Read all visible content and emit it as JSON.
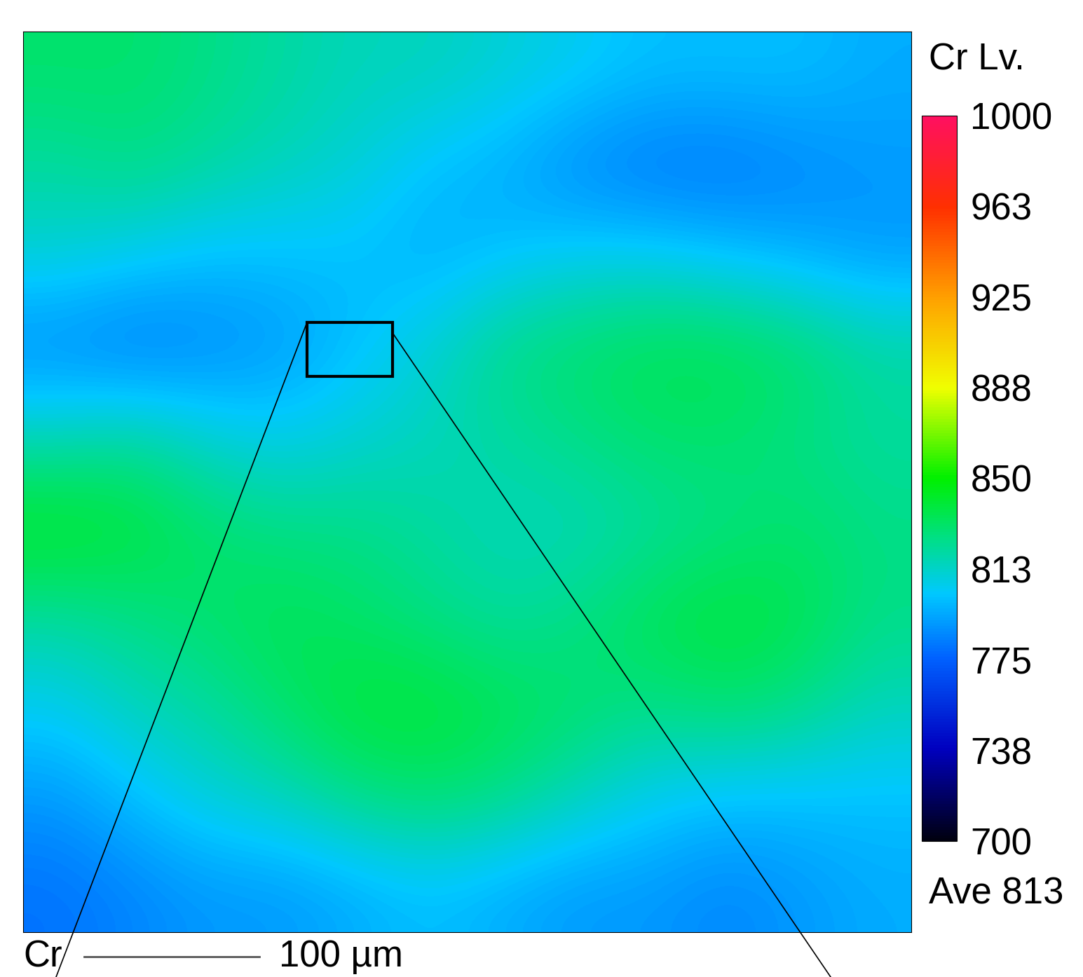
{
  "chart_data": {
    "type": "heatmap",
    "colorbar_title": "Cr Lv.",
    "colorbar_note": "Ave 813",
    "scale_bar_label": "Cr",
    "scale_bar_text": "100 µm",
    "tick_labels": false,
    "cells": [
      [
        830,
        830,
        825,
        820,
        815,
        815,
        810,
        805,
        800,
        800,
        800,
        795
      ],
      [
        820,
        825,
        820,
        815,
        810,
        800,
        795,
        785,
        780,
        780,
        785,
        790
      ],
      [
        810,
        805,
        800,
        800,
        800,
        795,
        800,
        805,
        805,
        800,
        795,
        790
      ],
      [
        785,
        780,
        785,
        790,
        800,
        810,
        825,
        830,
        835,
        835,
        830,
        820
      ],
      [
        815,
        820,
        810,
        805,
        810,
        815,
        820,
        825,
        830,
        830,
        825,
        820
      ],
      [
        845,
        840,
        830,
        825,
        825,
        820,
        815,
        815,
        820,
        825,
        830,
        825
      ],
      [
        820,
        825,
        830,
        835,
        830,
        825,
        820,
        825,
        835,
        840,
        835,
        825
      ],
      [
        805,
        815,
        820,
        830,
        840,
        840,
        835,
        830,
        825,
        830,
        825,
        815
      ],
      [
        790,
        800,
        810,
        815,
        825,
        830,
        825,
        815,
        805,
        800,
        800,
        800
      ],
      [
        780,
        785,
        790,
        790,
        795,
        800,
        795,
        790,
        790,
        785,
        790,
        795
      ]
    ],
    "colorbar_range": [
      700,
      1000
    ],
    "colorbar_ticks": [
      700,
      {
        "value": 737.5,
        "label": "738"
      },
      775,
      {
        "value": 812.5,
        "label": "813"
      },
      850,
      {
        "value": 887.5,
        "label": "888"
      },
      925,
      {
        "value": 962.5,
        "label": "963"
      },
      1000
    ]
  }
}
